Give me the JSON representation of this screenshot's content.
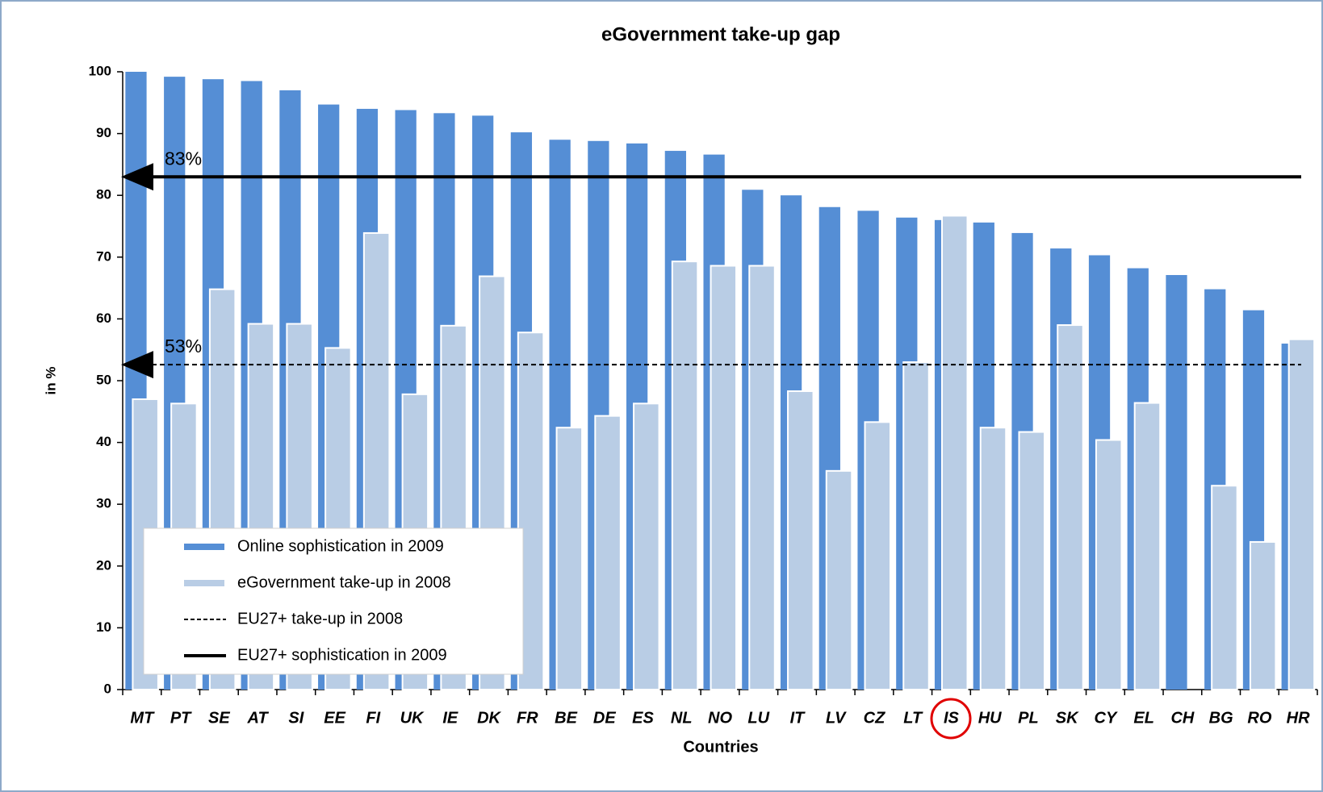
{
  "chart_data": {
    "type": "bar",
    "title": "eGovernment take-up gap",
    "y_label": "in %",
    "x_label": "Countries",
    "categories": [
      "MT",
      "PT",
      "SE",
      "AT",
      "SI",
      "EE",
      "FI",
      "UK",
      "IE",
      "DK",
      "FR",
      "BE",
      "DE",
      "ES",
      "NL",
      "NO",
      "LU",
      "IT",
      "LV",
      "CZ",
      "LT",
      "IS",
      "HU",
      "PL",
      "SK",
      "CY",
      "EL",
      "CH",
      "BG",
      "RO",
      "HR"
    ],
    "series": [
      {
        "name": "Online sophistication in 2009",
        "color": "#558ed5",
        "values": [
          100,
          99.2,
          98.8,
          98.5,
          97,
          94.7,
          94,
          93.8,
          93.3,
          92.9,
          90.2,
          89,
          88.8,
          88.4,
          87.2,
          86.6,
          80.9,
          80,
          78.1,
          77.5,
          76.4,
          76,
          75.6,
          73.9,
          71.4,
          70.3,
          68.2,
          67.1,
          64.8,
          61.4,
          56
        ]
      },
      {
        "name": "eGovernment take-up in 2008",
        "color": "#b9cde5",
        "values": [
          47,
          46.3,
          64.8,
          59.2,
          59.2,
          55.3,
          73.9,
          47.8,
          58.9,
          66.9,
          57.8,
          42.4,
          44.3,
          46.3,
          69.3,
          68.6,
          68.6,
          48.3,
          35.4,
          43.3,
          53,
          76.7,
          42.4,
          41.7,
          59,
          40.4,
          46.4,
          null,
          33,
          23.9,
          56.7
        ]
      }
    ],
    "reference_lines": [
      {
        "name": "EU27+ take-up in 2008",
        "value": 52.6,
        "label": "53%",
        "style": "dashed",
        "color": "#000000"
      },
      {
        "name": "EU27+ sophistication in 2009",
        "value": 83,
        "label": "83%",
        "style": "solid",
        "color": "#000000"
      }
    ],
    "ylim": [
      0,
      100
    ],
    "yticks": [
      0,
      10,
      20,
      30,
      40,
      50,
      60,
      70,
      80,
      90,
      100
    ],
    "legend": "bottom-left"
  }
}
